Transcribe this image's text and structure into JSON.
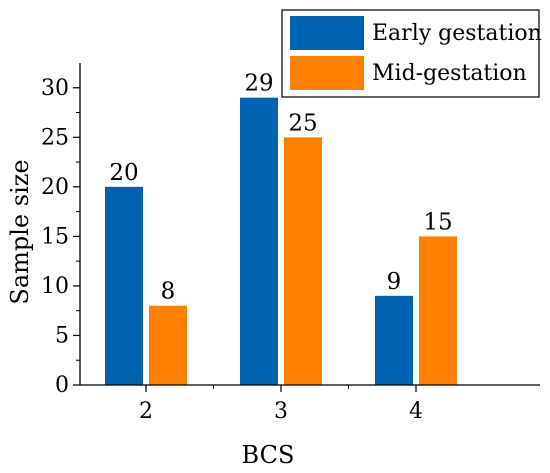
{
  "chart_data": {
    "type": "bar",
    "categories": [
      "2",
      "3",
      "4"
    ],
    "series": [
      {
        "name": "Early gestation",
        "values": [
          20,
          29,
          9
        ],
        "color": "#0063b1"
      },
      {
        "name": "Mid-gestation",
        "values": [
          8,
          25,
          15
        ],
        "color": "#ff8000"
      }
    ],
    "xlabel": "BCS",
    "ylabel": "Sample size",
    "ylim": [
      0,
      32.5
    ],
    "yticks": [
      0,
      5,
      10,
      15,
      20,
      25,
      30
    ],
    "grid": false,
    "legend_position": "top-right",
    "data_labels": true
  }
}
